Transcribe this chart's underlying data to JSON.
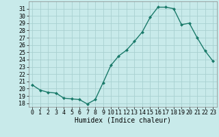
{
  "x": [
    0,
    1,
    2,
    3,
    4,
    5,
    6,
    7,
    8,
    9,
    10,
    11,
    12,
    13,
    14,
    15,
    16,
    17,
    18,
    19,
    20,
    21,
    22,
    23
  ],
  "y": [
    20.5,
    19.8,
    19.5,
    19.4,
    18.7,
    18.6,
    18.5,
    17.9,
    18.5,
    20.8,
    23.2,
    24.5,
    25.3,
    26.5,
    27.8,
    29.8,
    31.2,
    31.2,
    31.0,
    28.8,
    29.0,
    27.0,
    25.2,
    23.8
  ],
  "line_color": "#1a7a6a",
  "bg_color": "#c8eaea",
  "grid_color": "#a8d0d0",
  "xlabel": "Humidex (Indice chaleur)",
  "ylabel_ticks": [
    18,
    19,
    20,
    21,
    22,
    23,
    24,
    25,
    26,
    27,
    28,
    29,
    30,
    31
  ],
  "ylim": [
    17.5,
    32.0
  ],
  "xlim": [
    -0.5,
    23.5
  ],
  "tick_fontsize": 6,
  "xlabel_fontsize": 7
}
